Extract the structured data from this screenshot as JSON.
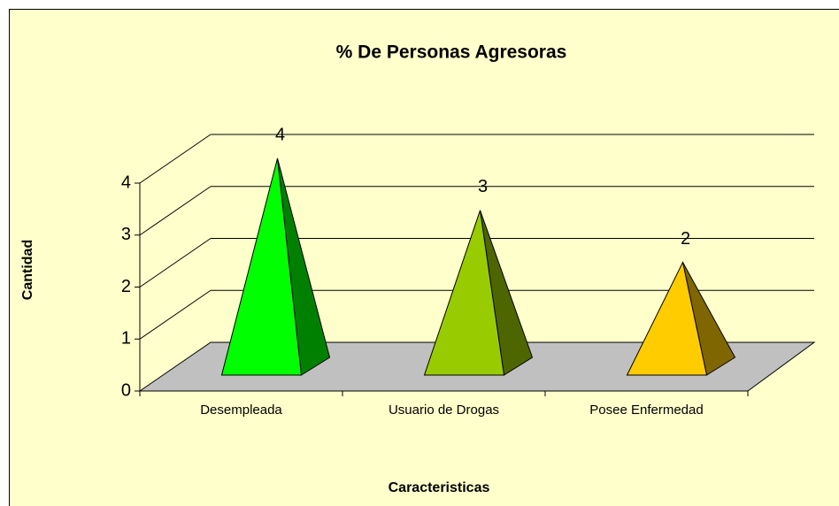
{
  "chart_data": {
    "type": "pyramid3d",
    "title": "% De Personas Agresoras",
    "x_label": "Caracteristicas",
    "y_label": "Cantidad",
    "categories": [
      "Desempleada",
      "Usuario de Drogas",
      "Posee Enfermedad"
    ],
    "values": [
      4,
      3,
      2
    ],
    "colors": [
      "#00FF00",
      "#99CC00",
      "#FFCC00"
    ],
    "ylim": [
      0,
      4
    ],
    "yticks": [
      0,
      1,
      2,
      3,
      4
    ],
    "grid": true
  }
}
